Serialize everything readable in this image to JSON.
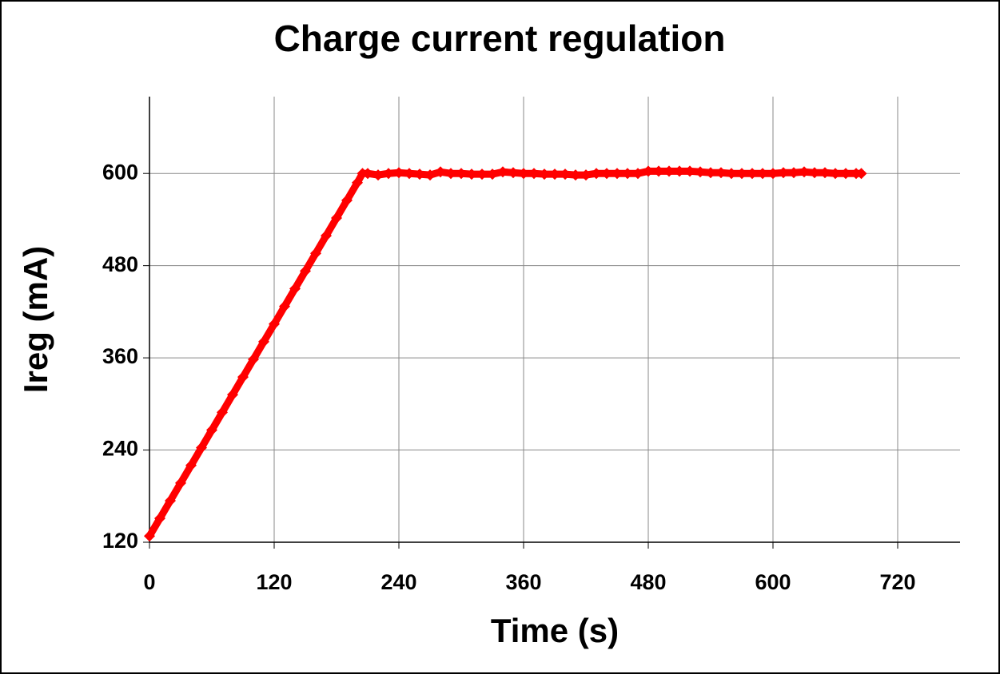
{
  "chart_data": {
    "type": "line",
    "title": "Charge current regulation",
    "x_label": "Time (s)",
    "y_label": "Ireg (mA)",
    "x": [
      0,
      10,
      20,
      30,
      40,
      50,
      60,
      70,
      80,
      90,
      100,
      110,
      120,
      130,
      140,
      150,
      160,
      170,
      180,
      190,
      200,
      205,
      210,
      220,
      230,
      240,
      250,
      260,
      270,
      280,
      290,
      300,
      310,
      320,
      330,
      340,
      350,
      360,
      370,
      380,
      390,
      400,
      410,
      420,
      430,
      440,
      450,
      460,
      470,
      480,
      490,
      500,
      510,
      520,
      530,
      540,
      550,
      560,
      570,
      580,
      590,
      600,
      610,
      620,
      630,
      640,
      650,
      660,
      670,
      680,
      685
    ],
    "series": [
      {
        "color": "#ff0000",
        "marker": "diamond",
        "values": [
          128,
          151,
          174,
          197,
          220,
          243,
          266,
          289,
          312,
          335,
          358,
          381,
          404,
          427,
          450,
          473,
          496,
          519,
          542,
          565,
          588,
          600,
          600,
          598,
          600,
          601,
          600,
          599,
          598,
          602,
          600,
          600,
          599,
          599,
          599,
          602,
          601,
          600,
          600,
          599,
          599,
          599,
          598,
          598,
          600,
          600,
          600,
          600,
          600,
          603,
          603,
          603,
          603,
          603,
          602,
          601,
          601,
          600,
          600,
          600,
          600,
          600,
          601,
          601,
          602,
          601,
          601,
          600,
          600,
          600,
          600
        ]
      }
    ],
    "xlim": [
      0,
      780
    ],
    "xticks": [
      0,
      120,
      240,
      360,
      480,
      600,
      720
    ],
    "ylim": [
      120,
      700
    ],
    "yticks": [
      120,
      240,
      360,
      480,
      600
    ],
    "grid": true
  }
}
